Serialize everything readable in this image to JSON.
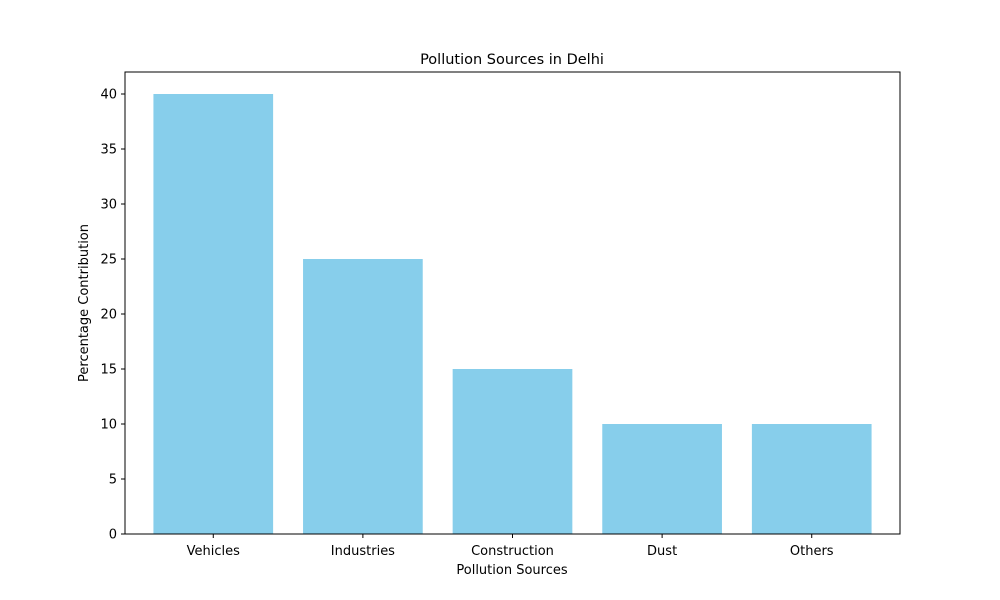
{
  "chart_data": {
    "type": "bar",
    "title": "Pollution Sources in Delhi",
    "xlabel": "Pollution Sources",
    "ylabel": "Percentage Contribution",
    "categories": [
      "Vehicles",
      "Industries",
      "Construction",
      "Dust",
      "Others"
    ],
    "values": [
      40,
      25,
      15,
      10,
      10
    ],
    "ylim": [
      0,
      42
    ],
    "yticks": [
      0,
      5,
      10,
      15,
      20,
      25,
      30,
      35,
      40
    ],
    "bar_color": "#87ceeb",
    "grid": false,
    "legend": false
  }
}
